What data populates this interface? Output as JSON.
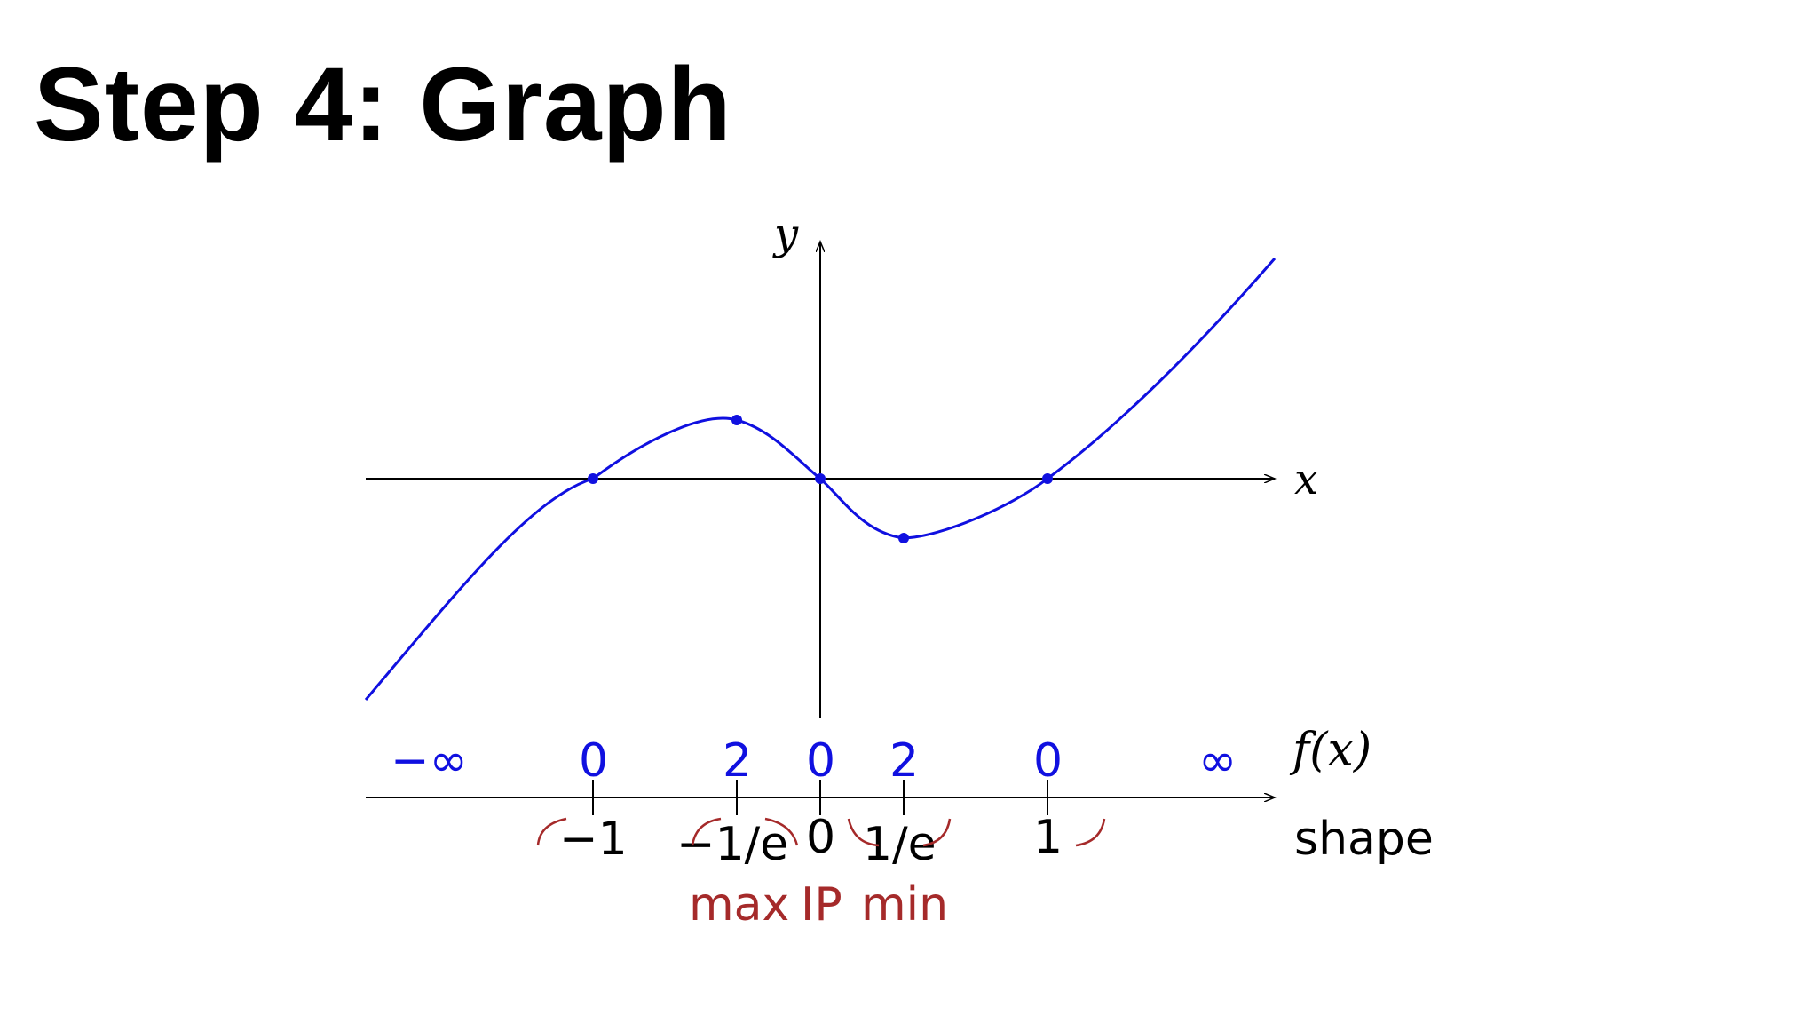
{
  "slide": {
    "title": "Step 4: Graph"
  },
  "axes": {
    "x_label": "x",
    "y_label": "y"
  },
  "chart_data": {
    "type": "line",
    "function_points": [
      {
        "x": -1,
        "y": 0,
        "label": "-1"
      },
      {
        "x": -0.3679,
        "y": 0.0,
        "label": "-1/e",
        "kind": "max"
      },
      {
        "x": 0,
        "y": 0,
        "label": "0",
        "kind": "IP"
      },
      {
        "x": 0.3679,
        "y": 0.0,
        "label": "1/e",
        "kind": "min"
      },
      {
        "x": 1,
        "y": 0,
        "label": "1"
      }
    ],
    "curve_color": "#1010e0"
  },
  "sign_chart": {
    "row_labels": {
      "f": "f(x)",
      "shape": "shape"
    },
    "f_values": [
      "−∞",
      "0",
      "2",
      "0",
      "2",
      "0",
      "∞"
    ],
    "x_values": [
      "−1",
      "−1/e",
      "0",
      "1/e",
      "1"
    ],
    "annotations": [
      "max",
      "IP",
      "min"
    ]
  },
  "colors": {
    "curve": "#1010e0",
    "f_values": "#1010e0",
    "annotation": "#a52a2a",
    "axis": "#000000"
  }
}
